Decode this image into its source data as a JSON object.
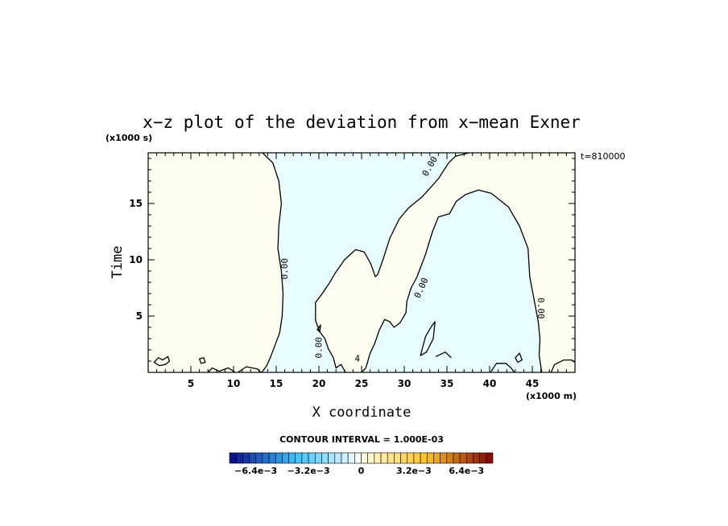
{
  "chart_data": {
    "type": "contour",
    "title": "x−z plot of the deviation from x−mean Exner",
    "xlabel": "X coordinate",
    "ylabel": "Time",
    "x_unit": "(x1000 m)",
    "y_unit": "(x1000 s)",
    "time_label": "t=810000",
    "xlim": [
      0,
      50
    ],
    "ylim": [
      0,
      19.5
    ],
    "x_ticks": [
      5,
      10,
      15,
      20,
      25,
      30,
      35,
      40,
      45
    ],
    "y_ticks": [
      5,
      10,
      15
    ],
    "contour_interval_text": "CONTOUR INTERVAL = 1.000E-03",
    "contour_labels": [
      {
        "text": "0.00",
        "x": 16,
        "y": 9.2,
        "angle": -90
      },
      {
        "text": "0.00",
        "x": 20,
        "y": 2.2,
        "angle": -90
      },
      {
        "text": "0.00",
        "x": 33,
        "y": 18.3,
        "angle": -60
      },
      {
        "text": "0.00",
        "x": 32,
        "y": 7.5,
        "angle": -65
      },
      {
        "text": "0.00",
        "x": 46,
        "y": 5.7,
        "angle": 90
      },
      {
        "text": "4",
        "x": 24.5,
        "y": 1.2,
        "angle": 0
      }
    ],
    "field_colors": {
      "positive": "#fdfdf0",
      "negative": "#e8fdfd"
    },
    "colorbar": {
      "min": -0.008,
      "max": 0.008,
      "step": 0.0004,
      "tick_labels": [
        "−6.4e−3",
        "−3.2e−3",
        "0",
        "3.2e−3",
        "6.4e−3"
      ],
      "tick_values": [
        -0.0064,
        -0.0032,
        0,
        0.0032,
        0.0064
      ]
    },
    "grid": false
  }
}
